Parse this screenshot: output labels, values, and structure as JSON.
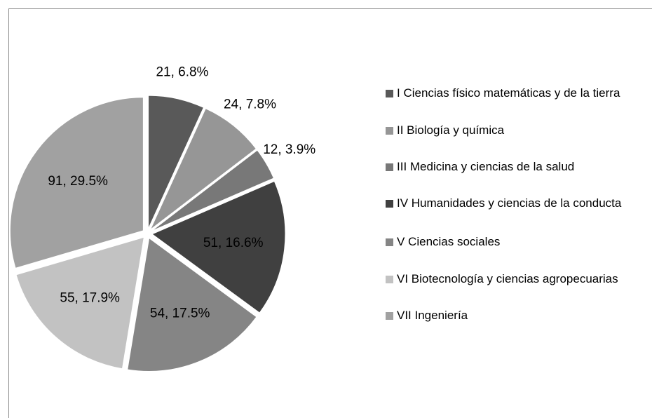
{
  "chart_data": {
    "type": "pie",
    "categories": [
      "I Ciencias físico matemáticas  y de la tierra",
      "II Biología y química",
      "III Medicina y ciencias de la salud",
      "IV Humanidades y ciencias de la conducta",
      "V Ciencias sociales",
      "VI Biotecnología y ciencias agropecuarias",
      "VII Ingeniería"
    ],
    "values": [
      21,
      24,
      12,
      51,
      54,
      55,
      91
    ],
    "value_labels": [
      "21, 6.8%",
      "24, 7.8%",
      "12, 3.9%",
      "51, 16.6%",
      "54, 17.5%",
      "55, 17.9%",
      "91, 29.5%"
    ],
    "colors": [
      "#595959",
      "#969696",
      "#787878",
      "#404040",
      "#858585",
      "#c2c2c2",
      "#a1a1a1"
    ],
    "legend": "right"
  }
}
